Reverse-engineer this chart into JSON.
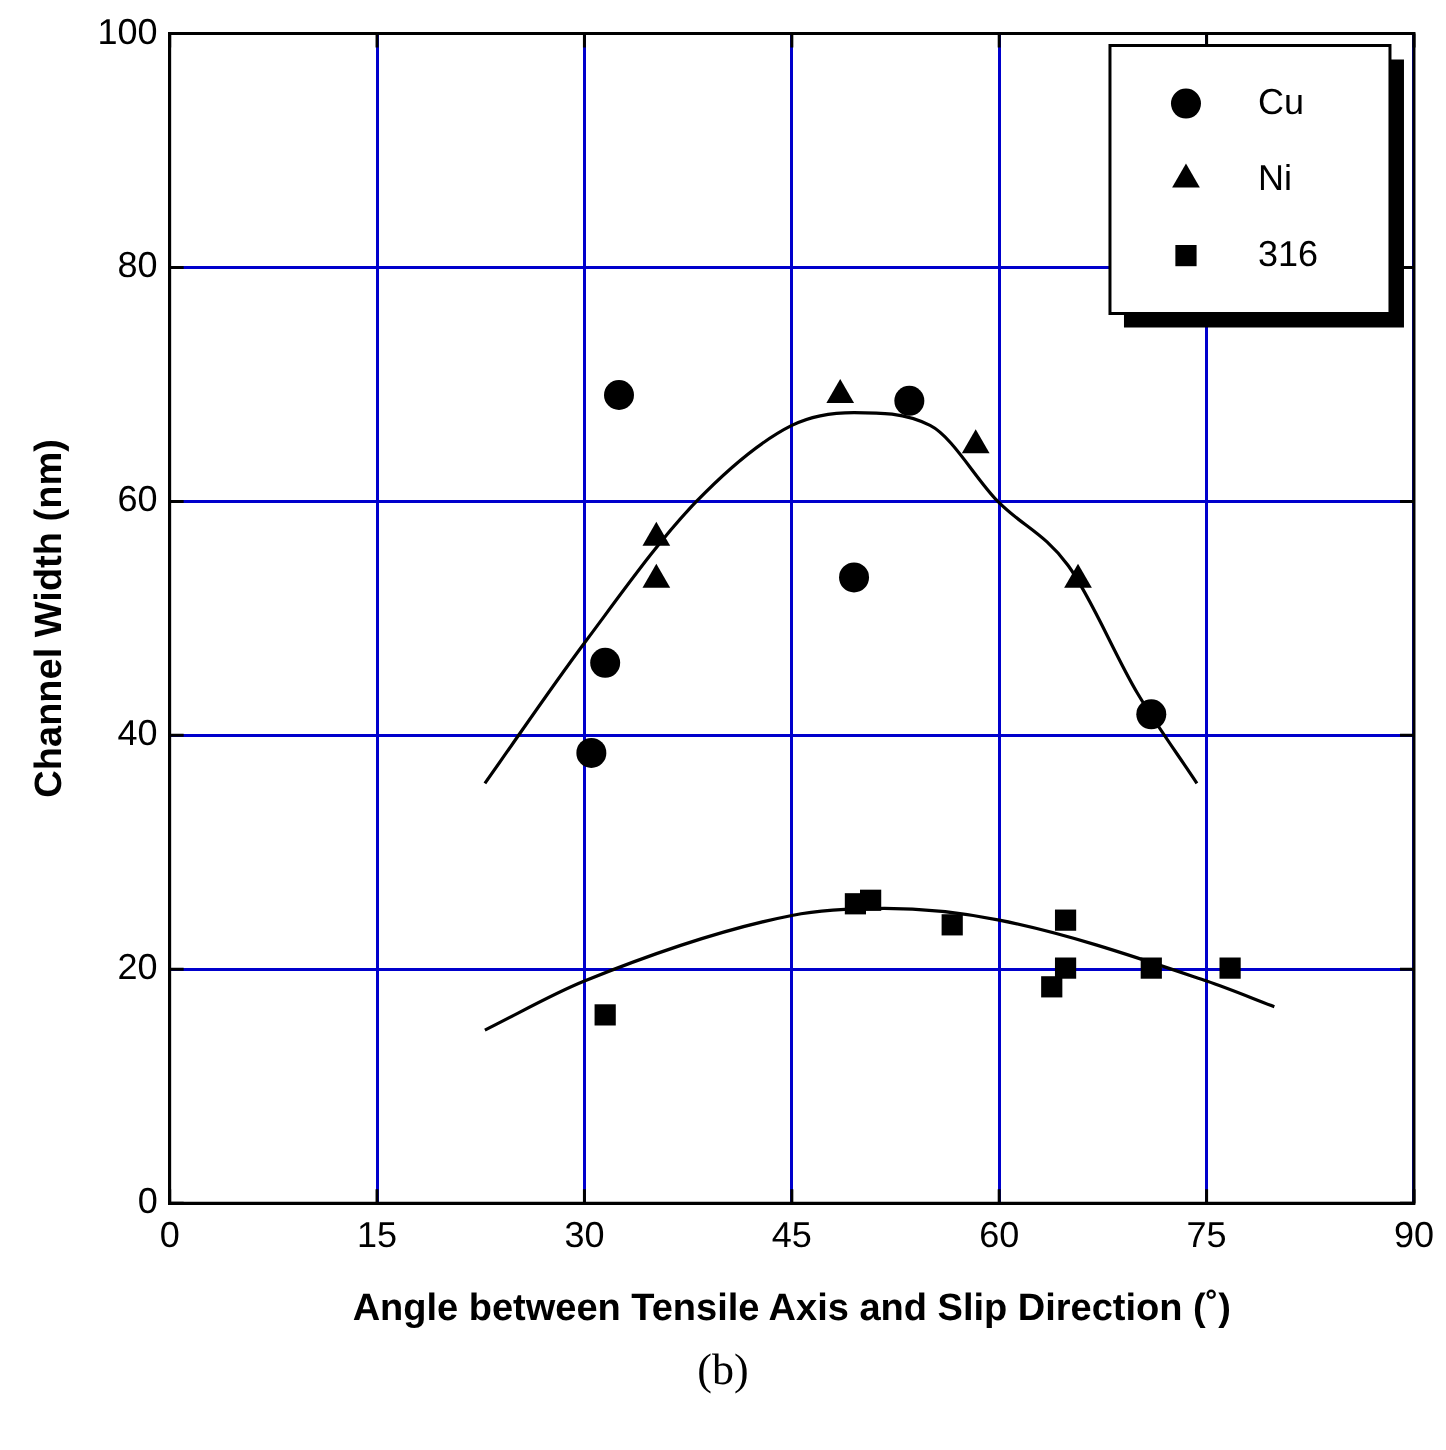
{
  "chart_data": {
    "type": "scatter",
    "xlabel": "Angle between Tensile Axis and Slip Direction (˚)",
    "ylabel": "Channel Width (nm)",
    "xlim": [
      0,
      90
    ],
    "xticks": [
      0,
      15,
      30,
      45,
      60,
      75,
      90
    ],
    "ylim": [
      0,
      100
    ],
    "yticks": [
      0,
      20,
      40,
      60,
      80,
      100
    ],
    "grid": true,
    "legend": "top right",
    "annotations": [
      "(b)"
    ],
    "series": [
      {
        "name": "Cu",
        "color": "#000000",
        "marker": "circle",
        "x": [
          32.5,
          53.5,
          49.5,
          31.5,
          30.5,
          71.0
        ],
        "values": [
          69.1,
          68.6,
          53.5,
          46.2,
          38.5,
          41.8
        ]
      },
      {
        "name": "Ni",
        "color": "#000000",
        "marker": "triangle",
        "x": [
          48.5,
          58.3,
          35.2,
          35.2,
          65.7
        ],
        "values": [
          69.1,
          64.8,
          56.9,
          53.3,
          53.3
        ]
      },
      {
        "name": "316",
        "color": "#000000",
        "marker": "square",
        "x": [
          31.5,
          49.6,
          50.7,
          56.6,
          64.8,
          64.8,
          63.8,
          71.0,
          76.7
        ],
        "values": [
          16.1,
          25.6,
          25.9,
          23.8,
          24.2,
          20.1,
          18.5,
          20.1,
          20.1
        ]
      },
      {
        "type": "line",
        "color": "#000000",
        "marker": "none",
        "x": [
          22.8,
          30,
          38.1,
          45,
          49.5,
          55,
          59.9,
          65,
          70,
          74.3
        ],
        "values": [
          35.9,
          47.9,
          60,
          66.5,
          67.6,
          66.5,
          60,
          54.5,
          43.6,
          35.9
        ]
      },
      {
        "type": "line",
        "color": "#000000",
        "marker": "none",
        "x": [
          22.8,
          30,
          45,
          51.7,
          60,
          75,
          79.9
        ],
        "values": [
          14.8,
          19.0,
          24.6,
          25.2,
          24.2,
          19.0,
          16.8
        ]
      }
    ]
  }
}
